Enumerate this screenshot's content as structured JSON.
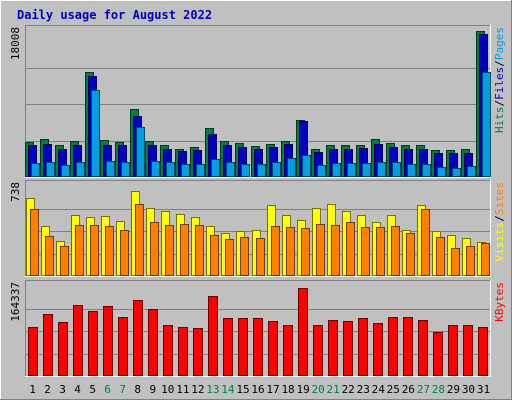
{
  "chart_data": {
    "type": "bar",
    "title": "Daily usage for August 2022",
    "categories": [
      "1",
      "2",
      "3",
      "4",
      "5",
      "6",
      "7",
      "8",
      "9",
      "10",
      "11",
      "12",
      "13",
      "14",
      "15",
      "16",
      "17",
      "18",
      "19",
      "20",
      "21",
      "22",
      "23",
      "24",
      "25",
      "26",
      "27",
      "28",
      "29",
      "30",
      "31"
    ],
    "weekend_days": [
      "6",
      "7",
      "13",
      "14",
      "20",
      "21",
      "27",
      "28"
    ],
    "panels": [
      {
        "id": "top",
        "max_label": "18008",
        "ymax": 18008,
        "right_labels": [
          {
            "text": "Hits",
            "color": "#008040"
          },
          {
            "text": "/",
            "color": "#000000"
          },
          {
            "text": "Files",
            "color": "#0000c0"
          },
          {
            "text": "/",
            "color": "#000000"
          },
          {
            "text": "Pages",
            "color": "#00a0e0"
          }
        ],
        "series": [
          {
            "name": "Hits",
            "color": "#008040",
            "values": [
              4300,
              4700,
              3900,
              4500,
              13000,
              4600,
              4300,
              8400,
              4400,
              3900,
              3500,
              3700,
              6100,
              4400,
              4200,
              3800,
              4100,
              4500,
              7000,
              3400,
              3900,
              3900,
              4000,
              4700,
              4200,
              4000,
              4000,
              3300,
              3300,
              3500,
              18008
            ]
          },
          {
            "name": "Files",
            "color": "#0000c0",
            "values": [
              3900,
              4100,
              3500,
              4000,
              12500,
              4000,
              3900,
              7500,
              4000,
              3500,
              3200,
              3300,
              5300,
              3900,
              3700,
              3500,
              3700,
              4100,
              6900,
              3100,
              3500,
              3500,
              3600,
              4100,
              3700,
              3500,
              3500,
              2900,
              3000,
              3000,
              17600
            ]
          },
          {
            "name": "Pages",
            "color": "#00a0e0",
            "values": [
              1700,
              1800,
              1500,
              1800,
              10700,
              2000,
              1900,
              6200,
              2000,
              1800,
              1600,
              1600,
              2200,
              1800,
              1600,
              1600,
              1800,
              2300,
              2700,
              1500,
              1700,
              1700,
              1700,
              1900,
              1800,
              1600,
              1600,
              1200,
              1100,
              1300,
              13000
            ]
          }
        ]
      },
      {
        "id": "middle",
        "max_label": "738",
        "ymax": 738,
        "right_labels": [
          {
            "text": "Visits",
            "color": "#ffff00"
          },
          {
            "text": "/",
            "color": "#000000"
          },
          {
            "text": "Sites",
            "color": "#ff8000"
          }
        ],
        "series": [
          {
            "name": "Visits",
            "color": "#ffff00",
            "values": [
              640,
              410,
              290,
              500,
              480,
              490,
              450,
              700,
              560,
              530,
              510,
              480,
              410,
              350,
              370,
              380,
              580,
              500,
              460,
              560,
              590,
              530,
              500,
              440,
              500,
              380,
              580,
              370,
              340,
              310,
              280
            ]
          },
          {
            "name": "Sites",
            "color": "#ff8000",
            "values": [
              550,
              330,
              250,
              420,
              420,
              410,
              380,
              590,
              440,
              420,
              430,
              420,
              340,
              300,
              320,
              310,
              410,
              400,
              390,
              430,
              420,
              440,
              400,
              400,
              410,
              350,
              550,
              320,
              230,
              250,
              270
            ]
          }
        ]
      },
      {
        "id": "bottom",
        "max_label": "164337",
        "ymax": 164337,
        "right_labels": [
          {
            "text": "KBytes",
            "color": "#ff0000"
          }
        ],
        "series": [
          {
            "name": "KBytes",
            "color": "#ff0000",
            "values": [
              90000,
              114000,
              98000,
              130000,
              118000,
              128000,
              107000,
              139000,
              122000,
              94000,
              89000,
              88000,
              146000,
              106000,
              106000,
              106000,
              101000,
              93000,
              160000,
              93000,
              102000,
              101000,
              106000,
              97000,
              108000,
              107000,
              103000,
              80000,
              93000,
              94000,
              90000
            ]
          }
        ]
      }
    ]
  }
}
